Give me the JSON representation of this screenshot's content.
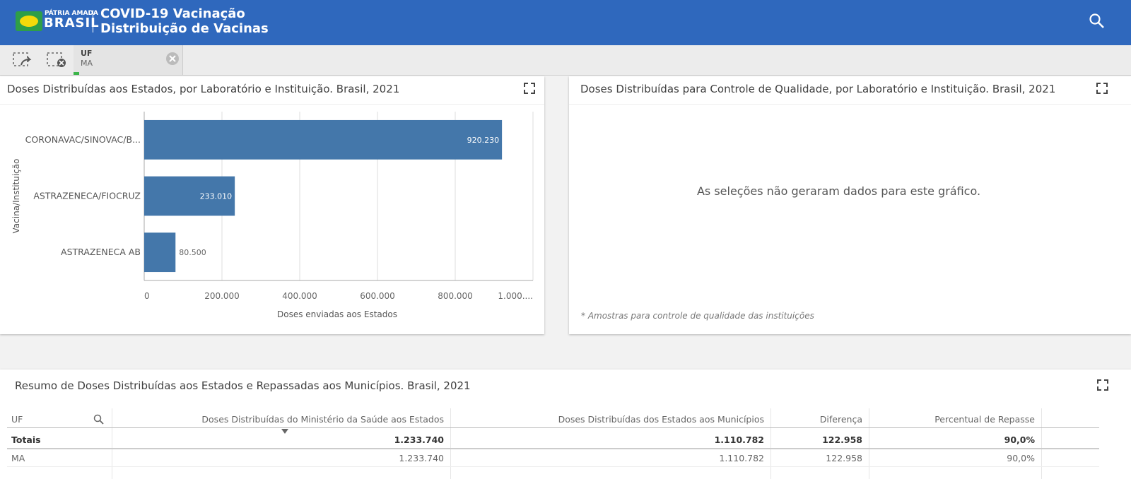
{
  "header": {
    "brand_top": "PÁTRIA AMADA",
    "brand": "BRASIL",
    "title_line1": "COVID-19 Vacinação",
    "title_line2": "Distribuição de Vacinas"
  },
  "filter": {
    "field": "UF",
    "value": "MA"
  },
  "chart_data": {
    "type": "hbar",
    "title": "Doses Distribuídas aos Estados, por Laboratório e Instituição. Brasil, 2021",
    "y_label": "Vacina/Instituição",
    "x_label": "Doses enviadas aos Estados",
    "categories": [
      "CORONAVAC/SINOVAC/B...",
      "ASTRAZENECA/FIOCRUZ",
      "ASTRAZENECA AB"
    ],
    "values": [
      920230,
      233010,
      80500
    ],
    "value_labels": [
      "920.230",
      "233.010",
      "80.500"
    ],
    "color": "#4477aa",
    "xlim": [
      0,
      1000000
    ],
    "xticks": [
      0,
      {
        "value": 200000,
        "label": "200.000"
      },
      {
        "value": 400000,
        "label": "400.000"
      },
      {
        "value": 600000,
        "label": "600.000"
      },
      {
        "value": 800000,
        "label": "800.000"
      },
      {
        "value": 1000000,
        "label": "1.000...."
      }
    ],
    "grid": true
  },
  "panel2": {
    "title": "Doses Distribuídas para Controle de Qualidade, por Laboratório e Instituição. Brasil, 2021",
    "message": "As seleções não geraram dados para este gráfico.",
    "note": "* Amostras para controle de qualidade das instituições"
  },
  "table": {
    "title": "Resumo de Doses Distribuídas aos Estados e Repassadas aos Municípios. Brasil, 2021",
    "headers": [
      "UF",
      "Doses Distribuídas do Ministério da Saúde aos Estados",
      "Doses Distribuídas dos Estados aos Municípios",
      "Diferença",
      "Percentual de Repasse"
    ],
    "rows": [
      [
        "Totais",
        "1.233.740",
        "1.110.782",
        "122.958",
        "90,0%"
      ],
      [
        "MA",
        "1.233.740",
        "1.110.782",
        "122.958",
        "90,0%"
      ]
    ]
  }
}
